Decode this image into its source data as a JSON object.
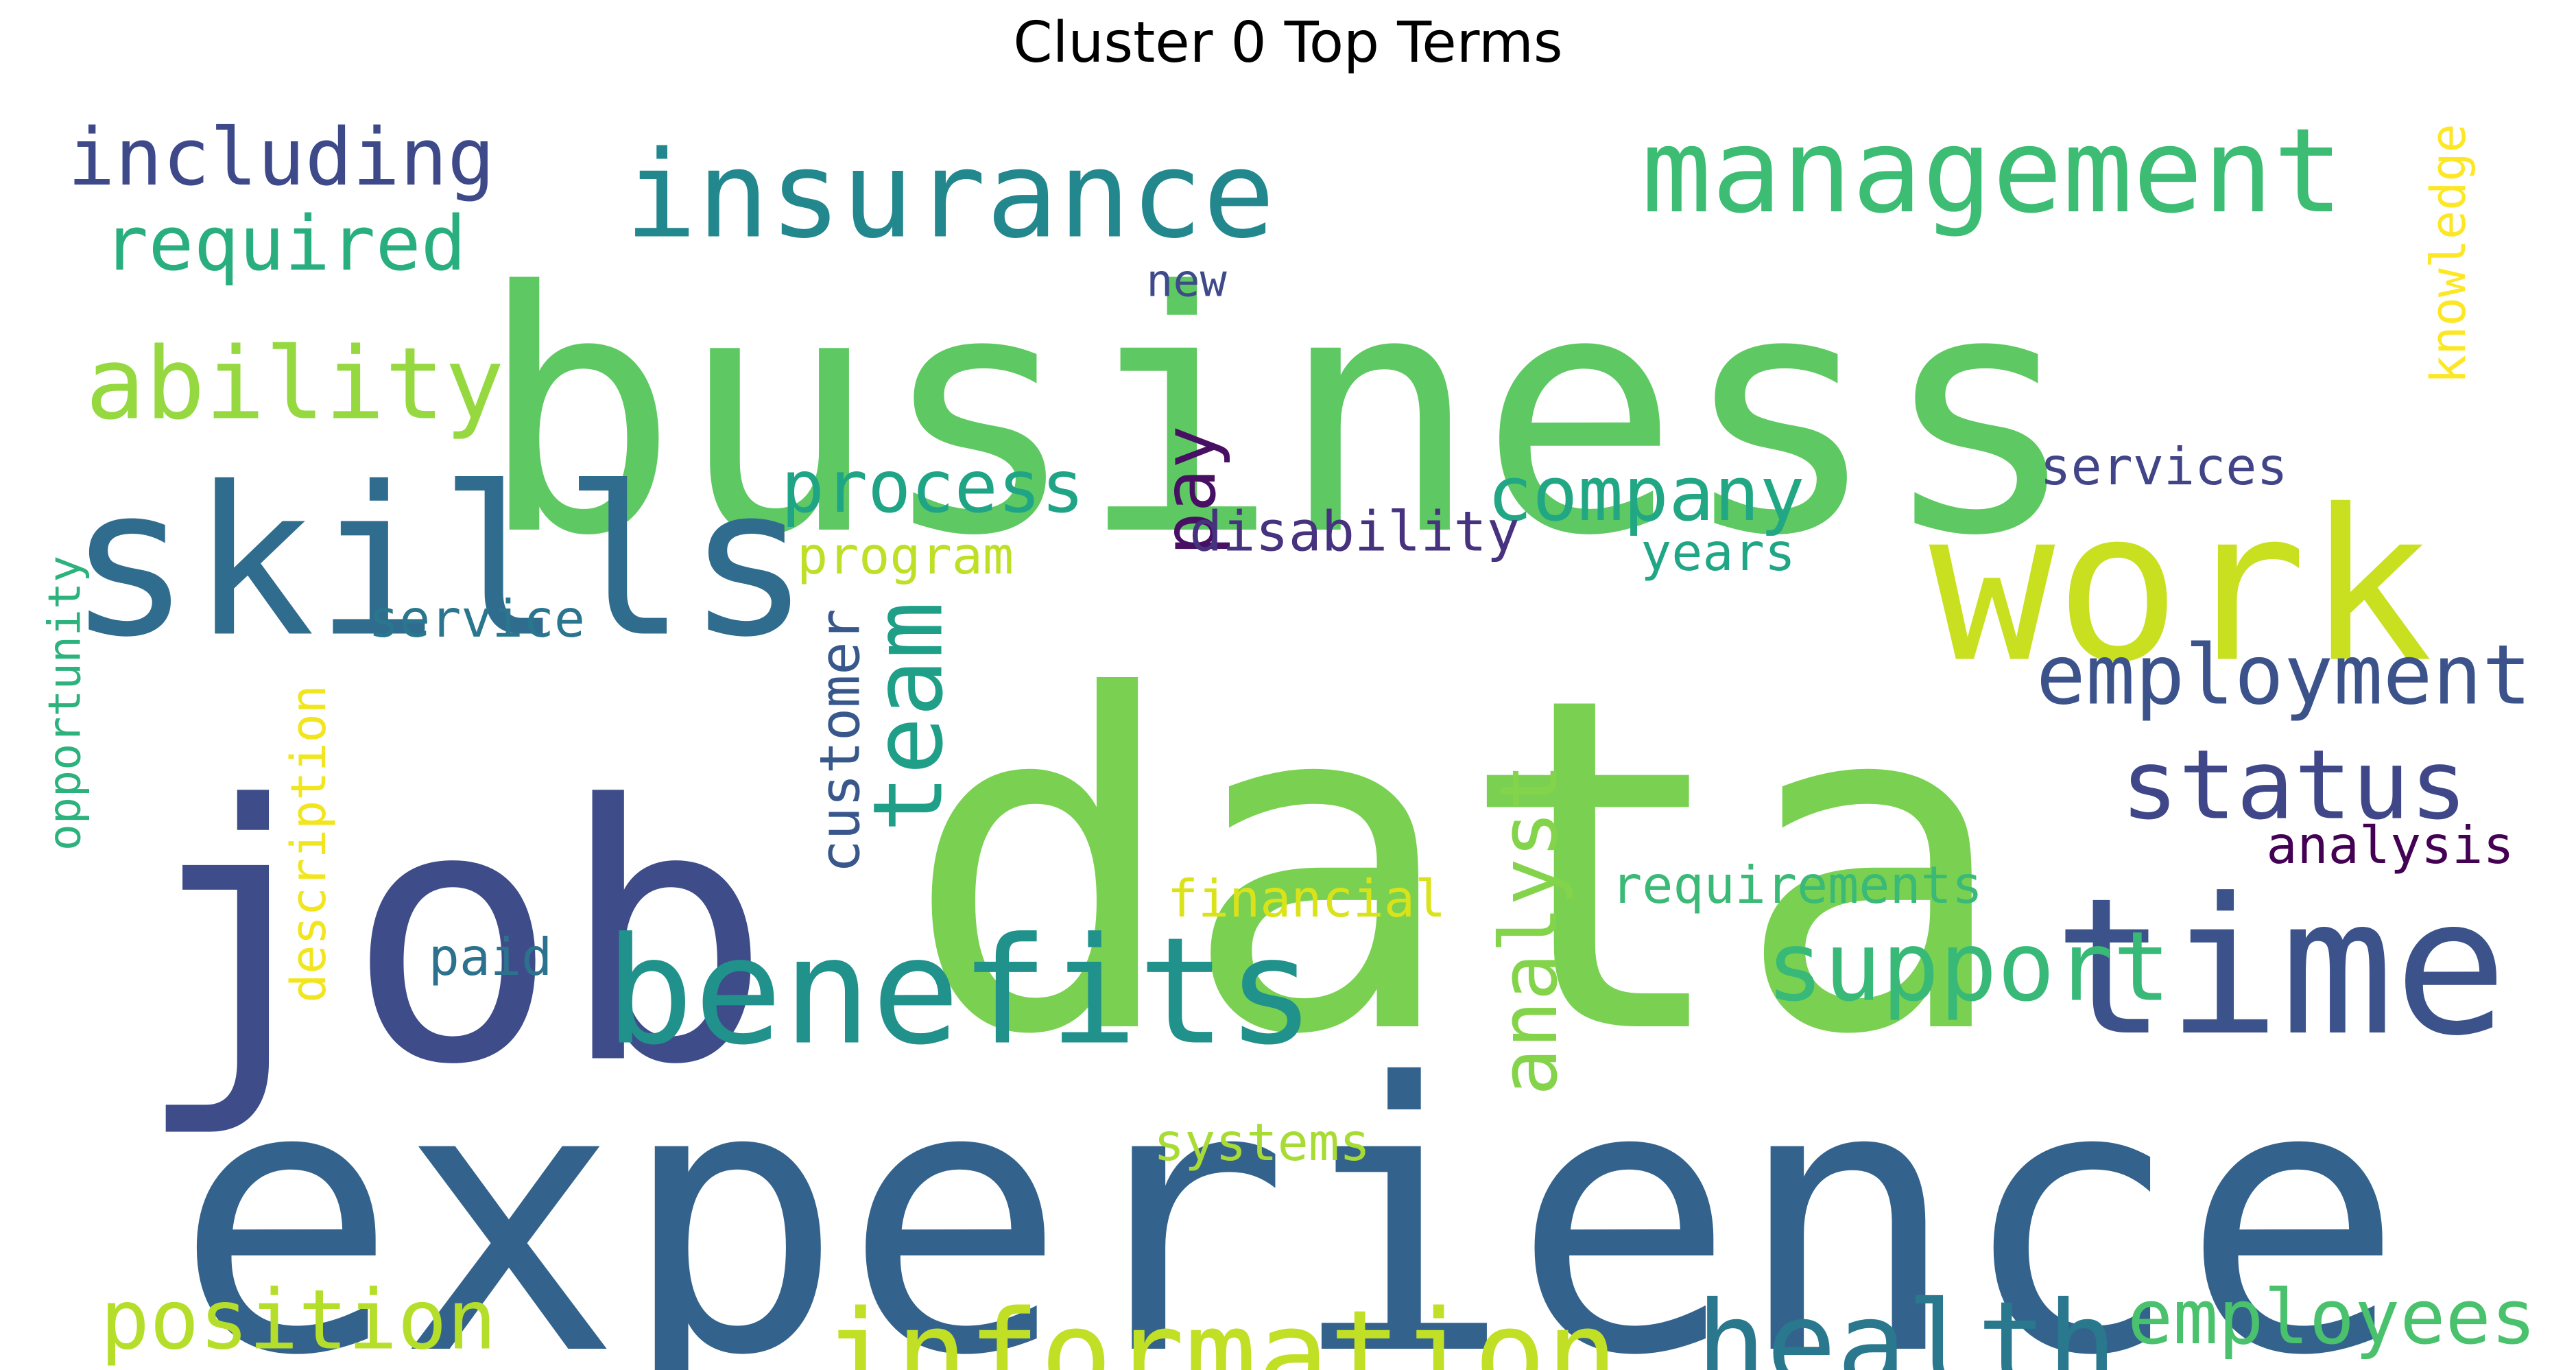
{
  "chart_data": {
    "type": "wordcloud",
    "title": "Cluster 0 Top Terms",
    "words": [
      {
        "text": "experience",
        "color": "#33638d"
      },
      {
        "text": "business",
        "color": "#5ec962"
      },
      {
        "text": "data",
        "color": "#7ad151"
      },
      {
        "text": "job",
        "color": "#3e4c8a"
      },
      {
        "text": "skills",
        "color": "#2f6c8e"
      },
      {
        "text": "work",
        "color": "#c8e020"
      },
      {
        "text": "time",
        "color": "#3b528b"
      },
      {
        "text": "benefits",
        "color": "#21918c"
      },
      {
        "text": "insurance",
        "color": "#23888e"
      },
      {
        "text": "management",
        "color": "#3dbc74"
      },
      {
        "text": "information",
        "color": "#c0df25"
      },
      {
        "text": "health",
        "color": "#2a788e"
      },
      {
        "text": "team",
        "color": "#1f9f88"
      },
      {
        "text": "status",
        "color": "#3f4788"
      },
      {
        "text": "support",
        "color": "#38b977"
      },
      {
        "text": "employment",
        "color": "#3b528b"
      },
      {
        "text": "analyst",
        "color": "#84d44b"
      },
      {
        "text": "ability",
        "color": "#95d840"
      },
      {
        "text": "company",
        "color": "#22a785"
      },
      {
        "text": "position",
        "color": "#b5de2b"
      },
      {
        "text": "employees",
        "color": "#4ac16d"
      },
      {
        "text": "including",
        "color": "#3e4989"
      },
      {
        "text": "required",
        "color": "#29af7f"
      },
      {
        "text": "process",
        "color": "#20a486"
      },
      {
        "text": "pay",
        "color": "#471063"
      },
      {
        "text": "customer",
        "color": "#38588c"
      },
      {
        "text": "disability",
        "color": "#46327e"
      },
      {
        "text": "knowledge",
        "color": "#fde725"
      },
      {
        "text": "services",
        "color": "#414487"
      },
      {
        "text": "years",
        "color": "#21a685"
      },
      {
        "text": "analysis",
        "color": "#440154"
      },
      {
        "text": "requirements",
        "color": "#3aba76"
      },
      {
        "text": "financial",
        "color": "#dae319"
      },
      {
        "text": "program",
        "color": "#bddf26"
      },
      {
        "text": "service",
        "color": "#2a768e"
      },
      {
        "text": "description",
        "color": "#f1e51d"
      },
      {
        "text": "opportunity",
        "color": "#2db27d"
      },
      {
        "text": "new",
        "color": "#3e4a89"
      },
      {
        "text": "paid",
        "color": "#2c728e"
      },
      {
        "text": "systems",
        "color": "#a8db34"
      }
    ]
  }
}
